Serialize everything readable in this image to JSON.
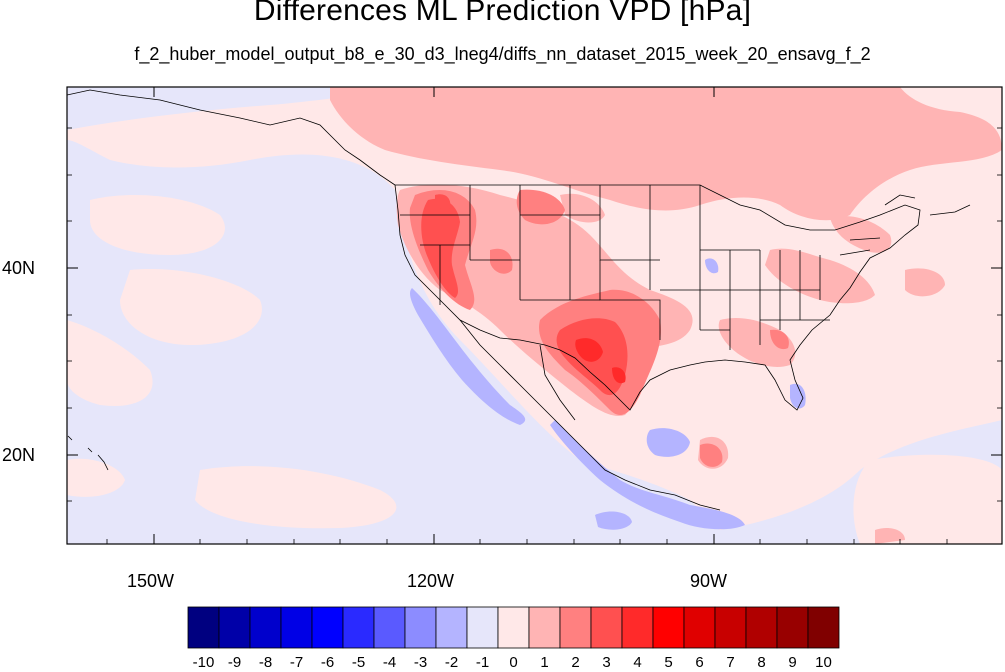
{
  "title": "Differences ML Prediction VPD [hPa]",
  "subtitle": "f_2_huber_model_output_b8_e_30_d3_lneg4/diffs_nn_dataset_2015_week_20_ensavg_f_2",
  "map": {
    "projection": "cylindrical-equidistant",
    "background_color": "#e6e6fa",
    "lon_ticks": [
      "150W",
      "120W",
      "90W"
    ],
    "lat_ticks": [
      "40N",
      "20N"
    ]
  },
  "colorbar": {
    "labels": [
      "-10",
      "-9",
      "-8",
      "-7",
      "-6",
      "-5",
      "-4",
      "-3",
      "-2",
      "-1",
      "0",
      "1",
      "2",
      "3",
      "4",
      "5",
      "6",
      "7",
      "8",
      "9",
      "10"
    ],
    "colors": [
      "#000080",
      "#0000a8",
      "#0000cc",
      "#0000e6",
      "#0000ff",
      "#2a2aff",
      "#5a5aff",
      "#8c8cff",
      "#b4b4ff",
      "#e6e6fa",
      "#ffe8e8",
      "#ffb4b4",
      "#ff8080",
      "#ff5050",
      "#ff2a2a",
      "#ff0000",
      "#e00000",
      "#c80000",
      "#b00000",
      "#980000",
      "#800000"
    ]
  }
}
